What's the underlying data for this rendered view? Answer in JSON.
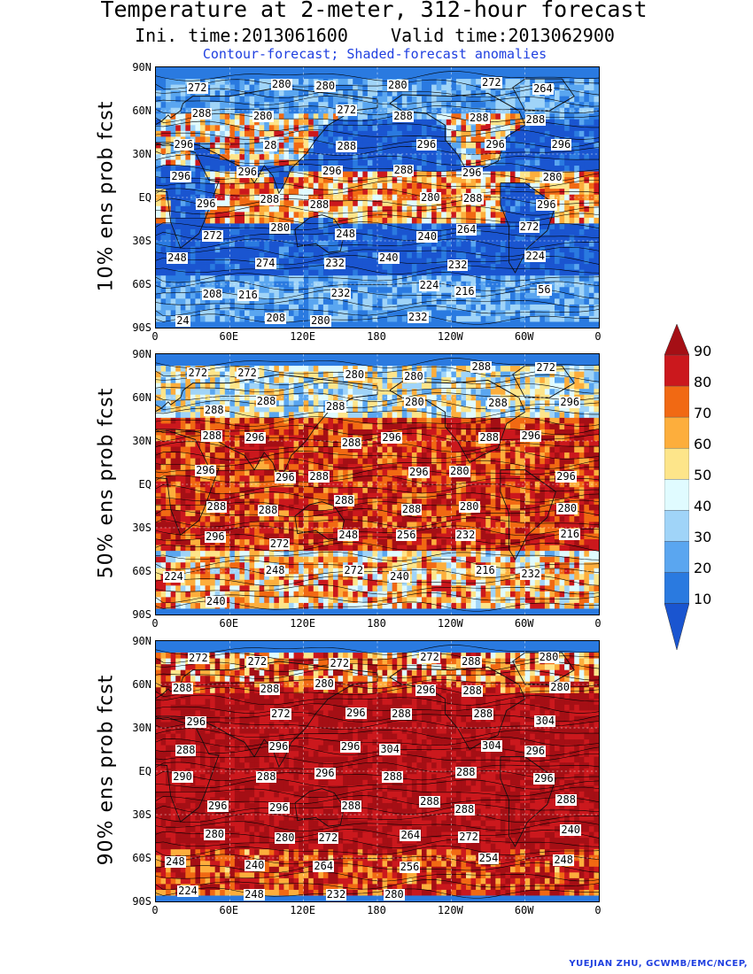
{
  "title": {
    "line1": "Temperature at 2-meter, 312-hour forecast",
    "line2": "Ini. time:2013061600    Valid time:2013062900",
    "line3": "Contour-forecast; Shaded-forecast anomalies"
  },
  "axes": {
    "lat_ticks": [
      "90N",
      "60N",
      "30N",
      "EQ",
      "30S",
      "60S",
      "90S"
    ],
    "lon_ticks": [
      "0",
      "60E",
      "120E",
      "180",
      "120W",
      "60W",
      "0"
    ]
  },
  "panels": [
    {
      "ylabel": "10% ens prob fcst",
      "labels": [
        "272",
        "280",
        "280",
        "280",
        "272",
        "264",
        "288",
        "280",
        "272",
        "288",
        "288",
        "288",
        "296",
        "28",
        "288",
        "296",
        "296",
        "296",
        "296",
        "296",
        "296",
        "288",
        "296",
        "280",
        "296",
        "288",
        "288",
        "280",
        "288",
        "296",
        "272",
        "280",
        "248",
        "240",
        "264",
        "272",
        "248",
        "274",
        "232",
        "240",
        "232",
        "224",
        "208",
        "216",
        "232",
        "224",
        "216",
        "56",
        "24",
        "208",
        "280",
        "232"
      ]
    },
    {
      "ylabel": "50% ens prob fcst",
      "labels": [
        "272",
        "272",
        "280",
        "280",
        "288",
        "272",
        "288",
        "288",
        "288",
        "280",
        "288",
        "296",
        "288",
        "296",
        "288",
        "296",
        "288",
        "296",
        "296",
        "296",
        "288",
        "296",
        "280",
        "296",
        "288",
        "288",
        "288",
        "288",
        "280",
        "280",
        "296",
        "272",
        "248",
        "256",
        "232",
        "216",
        "224",
        "248",
        "272",
        "240",
        "216",
        "232",
        "240"
      ]
    },
    {
      "ylabel": "90% ens prob fcst",
      "labels": [
        "272",
        "272",
        "272",
        "272",
        "288",
        "280",
        "288",
        "288",
        "280",
        "296",
        "288",
        "280",
        "296",
        "272",
        "296",
        "288",
        "288",
        "304",
        "288",
        "296",
        "296",
        "304",
        "304",
        "296",
        "290",
        "288",
        "296",
        "288",
        "288",
        "296",
        "296",
        "296",
        "288",
        "288",
        "288",
        "288",
        "280",
        "280",
        "272",
        "264",
        "272",
        "240",
        "248",
        "240",
        "264",
        "256",
        "254",
        "248",
        "224",
        "248",
        "232",
        "280"
      ]
    }
  ],
  "colorbar": {
    "ticks": [
      "90",
      "80",
      "70",
      "60",
      "50",
      "40",
      "30",
      "20",
      "10"
    ],
    "colors": [
      "#a50f15",
      "#cb181d",
      "#f16913",
      "#fdae3c",
      "#fde58a",
      "#e0fbff",
      "#a0d4f8",
      "#5aa6f0",
      "#2a7ae0",
      "#1a55d0"
    ]
  },
  "credit": "YUEJIAN ZHU, GCWMB/EMC/NCEP,"
}
